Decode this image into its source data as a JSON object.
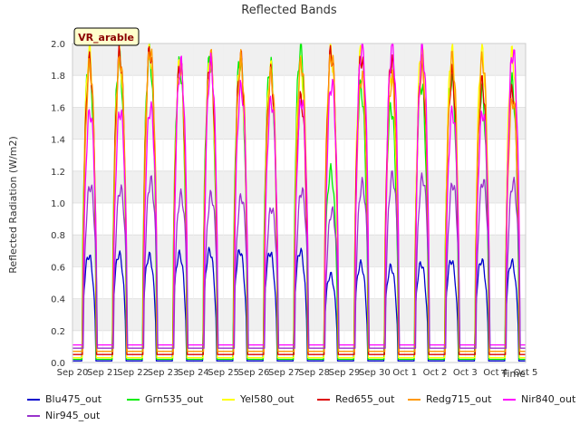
{
  "chart_data": {
    "type": "line",
    "title": "Reflected Bands",
    "xlabel": "Time",
    "ylabel": "Reflected Radiation (W/m2)",
    "ylim": [
      0,
      2.0
    ],
    "yticks": [
      "0.0",
      "0.2",
      "0.4",
      "0.6",
      "0.8",
      "1.0",
      "1.2",
      "1.4",
      "1.6",
      "1.8",
      "2.0"
    ],
    "xticks": [
      "Sep 20",
      "Sep 21",
      "Sep 22",
      "Sep 23",
      "Sep 24",
      "Sep 25",
      "Sep 26",
      "Sep 27",
      "Sep 28",
      "Sep 29",
      "Sep 30",
      "Oct 1",
      "Oct 2",
      "Oct 3",
      "Oct 4",
      "Oct 5"
    ],
    "grid": true,
    "legend_position": "bottom",
    "annotation": "VR_arable",
    "day_peaks": {
      "days": [
        "Sep 20",
        "Sep 21",
        "Sep 22",
        "Sep 23",
        "Sep 24",
        "Sep 25",
        "Sep 26",
        "Sep 27",
        "Sep 28",
        "Sep 29",
        "Sep 30",
        "Oct 1",
        "Oct 2",
        "Oct 3",
        "Oct 4"
      ],
      "series": [
        {
          "name": "Blu475_out",
          "color": "#0000cc",
          "night": 0.01,
          "values": [
            0.67,
            0.68,
            0.67,
            0.68,
            0.7,
            0.7,
            0.69,
            0.7,
            0.55,
            0.62,
            0.6,
            0.62,
            0.64,
            0.64,
            0.63
          ]
        },
        {
          "name": "Grn535_out",
          "color": "#00ee00",
          "night": 0.02,
          "values": [
            1.9,
            1.91,
            1.93,
            1.86,
            1.9,
            1.9,
            1.87,
            1.97,
            1.2,
            1.72,
            1.6,
            1.75,
            1.78,
            1.7,
            1.75
          ]
        },
        {
          "name": "Yel580_out",
          "color": "#ffff00",
          "night": 0.03,
          "values": [
            1.95,
            1.92,
            1.96,
            1.88,
            1.89,
            1.88,
            1.84,
            1.85,
            1.95,
            1.95,
            1.8,
            1.95,
            1.95,
            1.95,
            1.93
          ]
        },
        {
          "name": "Red655_out",
          "color": "#dd0000",
          "night": 0.05,
          "values": [
            1.88,
            1.93,
            1.96,
            1.87,
            1.9,
            1.9,
            1.8,
            1.65,
            1.95,
            1.92,
            1.9,
            1.85,
            1.8,
            1.75,
            1.7
          ]
        },
        {
          "name": "Redg715_out",
          "color": "#ff9900",
          "night": 0.07,
          "values": [
            1.85,
            1.9,
            1.96,
            1.86,
            1.91,
            1.89,
            1.8,
            1.88,
            1.93,
            1.8,
            1.78,
            1.86,
            1.9,
            1.9,
            1.65
          ]
        },
        {
          "name": "Nir840_out",
          "color": "#ff00ff",
          "night": 0.11,
          "values": [
            1.57,
            1.58,
            1.6,
            1.87,
            1.87,
            1.72,
            1.64,
            1.65,
            1.75,
            1.99,
            1.99,
            1.96,
            1.57,
            1.57,
            1.95
          ]
        },
        {
          "name": "Nir945_out",
          "color": "#9933cc",
          "night": 0.09,
          "values": [
            1.11,
            1.09,
            1.14,
            1.05,
            1.05,
            1.04,
            0.97,
            1.08,
            0.95,
            1.12,
            1.17,
            1.16,
            1.12,
            1.14,
            1.13
          ]
        }
      ]
    }
  }
}
